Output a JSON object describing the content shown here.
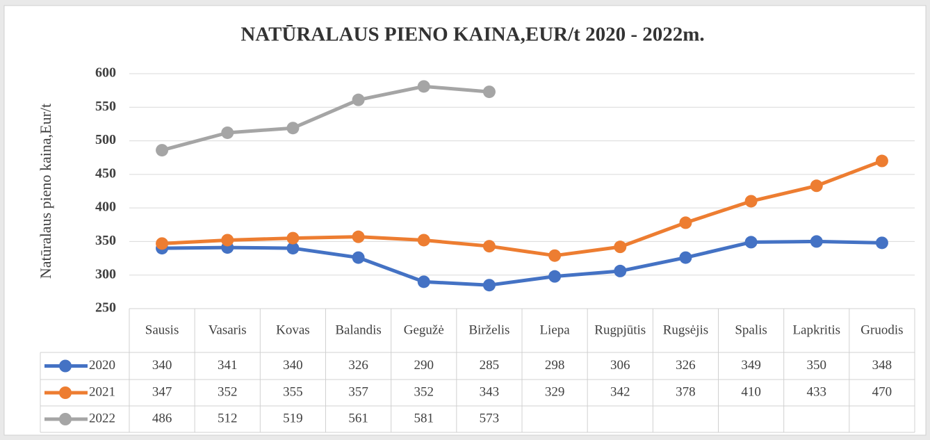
{
  "chart_data": {
    "type": "line",
    "title": "NATŪRALAUS PIENO KAINA,EUR/t 2020 - 2022m.",
    "y_label": "Natūralaus pieno kaina,Eur/t",
    "categories": [
      "Sausis",
      "Vasaris",
      "Kovas",
      "Balandis",
      "Gegužė",
      "Birželis",
      "Liepa",
      "Rugpjūtis",
      "Rugsėjis",
      "Spalis",
      "Lapkritis",
      "Gruodis"
    ],
    "series": [
      {
        "name": "2020",
        "color": "#4472c4",
        "values": [
          340,
          341,
          340,
          326,
          290,
          285,
          298,
          306,
          326,
          349,
          350,
          348
        ]
      },
      {
        "name": "2021",
        "color": "#ed7d31",
        "values": [
          347,
          352,
          355,
          357,
          352,
          343,
          329,
          342,
          378,
          410,
          433,
          470
        ]
      },
      {
        "name": "2022",
        "color": "#a5a5a5",
        "values": [
          486,
          512,
          519,
          561,
          581,
          573,
          null,
          null,
          null,
          null,
          null,
          null
        ]
      }
    ],
    "ylim": [
      250,
      600
    ],
    "yticks": [
      250,
      300,
      350,
      400,
      450,
      500,
      550,
      600
    ],
    "grid": true
  }
}
